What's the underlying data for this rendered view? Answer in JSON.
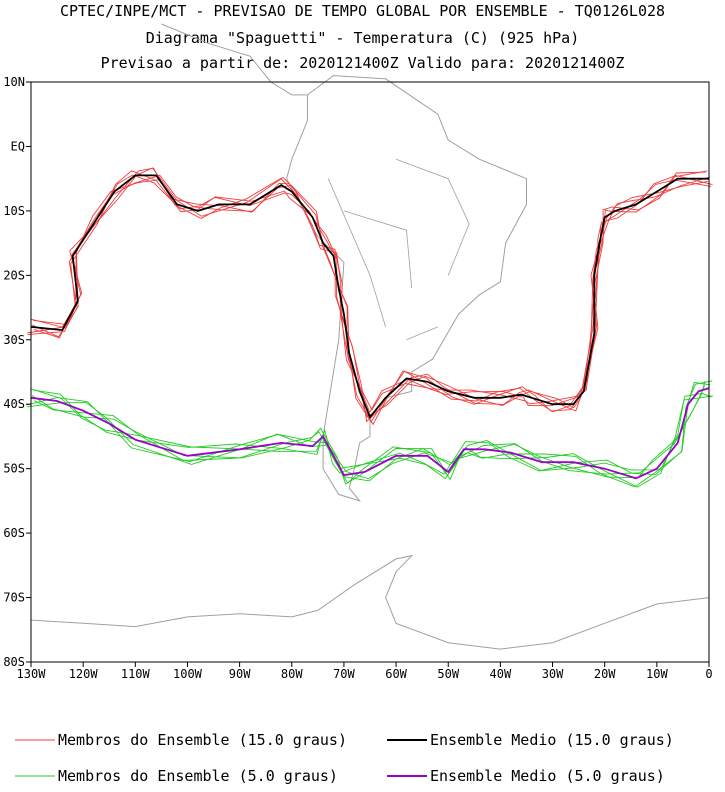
{
  "chart_data": {
    "type": "line",
    "title": "CPTEC/INPE/MCT - PREVISAO DE TEMPO GLOBAL POR ENSEMBLE - TQ0126L028",
    "subtitle": "Diagrama \"Spaguetti\" - Temperatura (C) (925 hPa)",
    "subtitle2": "Previsao a partir de: 2020121400Z  Valido para: 2020121400Z",
    "xlabel": "",
    "ylabel": "",
    "xlim": [
      -130,
      0
    ],
    "ylim": [
      -80,
      10
    ],
    "x_ticks": [
      {
        "value": -130,
        "label": "130W"
      },
      {
        "value": -120,
        "label": "120W"
      },
      {
        "value": -110,
        "label": "110W"
      },
      {
        "value": -100,
        "label": "100W"
      },
      {
        "value": -90,
        "label": "90W"
      },
      {
        "value": -80,
        "label": "80W"
      },
      {
        "value": -70,
        "label": "70W"
      },
      {
        "value": -60,
        "label": "60W"
      },
      {
        "value": -50,
        "label": "50W"
      },
      {
        "value": -40,
        "label": "40W"
      },
      {
        "value": -30,
        "label": "30W"
      },
      {
        "value": -20,
        "label": "20W"
      },
      {
        "value": -10,
        "label": "10W"
      },
      {
        "value": 0,
        "label": "0"
      }
    ],
    "y_ticks": [
      {
        "value": 10,
        "label": "10N"
      },
      {
        "value": 0,
        "label": "EQ"
      },
      {
        "value": -10,
        "label": "10S"
      },
      {
        "value": -20,
        "label": "20S"
      },
      {
        "value": -30,
        "label": "30S"
      },
      {
        "value": -40,
        "label": "40S"
      },
      {
        "value": -50,
        "label": "50S"
      },
      {
        "value": -60,
        "label": "60S"
      },
      {
        "value": -70,
        "label": "70S"
      },
      {
        "value": -80,
        "label": "80S"
      }
    ],
    "series": [
      {
        "name": "Membros do Ensemble (15.0 graus)",
        "color": "#f03c3c",
        "style": "members",
        "members": 6,
        "spread": 1.2,
        "x": [
          -130,
          -124,
          -121,
          -122,
          -118,
          -114,
          -110,
          -106,
          -102,
          -98,
          -94,
          -88,
          -82,
          -80,
          -76,
          -74,
          -72,
          -71,
          -70,
          -69,
          -67,
          -65,
          -62,
          -58,
          -54,
          -50,
          -45,
          -40,
          -36,
          -34,
          -30,
          -26,
          -24,
          -22,
          -22,
          -21,
          -20,
          -18,
          -14,
          -10,
          -6,
          0
        ],
        "y": [
          -28,
          -28.5,
          -24,
          -17,
          -12,
          -7,
          -4.5,
          -4.5,
          -9,
          -10,
          -9,
          -9,
          -6,
          -7,
          -11,
          -15,
          -17,
          -22,
          -26,
          -32,
          -38,
          -42,
          -39,
          -36,
          -36.5,
          -38,
          -39,
          -39,
          -38.5,
          -39,
          -40,
          -40,
          -38,
          -29,
          -20,
          -15,
          -11,
          -10,
          -9,
          -7,
          -5,
          -5
        ]
      },
      {
        "name": "Ensemble Medio (15.0 graus)",
        "color": "#000000",
        "style": "mean",
        "x": [
          -130,
          -124,
          -121,
          -122,
          -118,
          -114,
          -110,
          -106,
          -102,
          -98,
          -94,
          -88,
          -82,
          -80,
          -76,
          -74,
          -72,
          -71,
          -70,
          -69,
          -67,
          -65,
          -62,
          -58,
          -54,
          -50,
          -45,
          -40,
          -36,
          -34,
          -30,
          -26,
          -24,
          -22,
          -22,
          -21,
          -20,
          -18,
          -14,
          -10,
          -6,
          0
        ],
        "y": [
          -28,
          -28.5,
          -24,
          -17,
          -12,
          -7,
          -4.5,
          -4.5,
          -9,
          -10,
          -9,
          -9,
          -6,
          -7,
          -11,
          -15,
          -17,
          -22,
          -26,
          -32,
          -38,
          -42,
          -39,
          -36,
          -36.5,
          -38,
          -39,
          -39,
          -38.5,
          -39,
          -40,
          -40,
          -38,
          -29,
          -20,
          -15,
          -11,
          -10,
          -9,
          -7,
          -5,
          -5
        ]
      },
      {
        "name": "Membros do Ensemble (5.0 graus)",
        "color": "#22cc22",
        "style": "members",
        "members": 6,
        "spread": 1.4,
        "x": [
          -130,
          -125,
          -120,
          -115,
          -110,
          -100,
          -90,
          -82,
          -76,
          -74,
          -72,
          -70,
          -66,
          -60,
          -54,
          -50,
          -47,
          -43,
          -38,
          -32,
          -26,
          -20,
          -14,
          -10,
          -6,
          -4,
          -2,
          0
        ],
        "y": [
          -39,
          -39.5,
          -41,
          -43,
          -45.5,
          -48,
          -47,
          -46,
          -46.5,
          -45,
          -48,
          -51,
          -50.5,
          -48,
          -48,
          -50.5,
          -47,
          -47,
          -47.5,
          -49,
          -49,
          -50,
          -51.5,
          -50,
          -46,
          -40,
          -38,
          -37.5
        ]
      },
      {
        "name": "Ensemble Medio (5.0 graus)",
        "color": "#9b00cc",
        "style": "mean",
        "x": [
          -130,
          -125,
          -120,
          -115,
          -110,
          -100,
          -90,
          -82,
          -76,
          -74,
          -72,
          -70,
          -66,
          -60,
          -54,
          -50,
          -47,
          -43,
          -38,
          -32,
          -26,
          -20,
          -14,
          -10,
          -6,
          -4,
          -2,
          0
        ],
        "y": [
          -39,
          -39.5,
          -41,
          -43,
          -45.5,
          -48,
          -47,
          -46,
          -46.5,
          -45,
          -48,
          -51,
          -50.5,
          -48,
          -48,
          -50.5,
          -47,
          -47,
          -47.5,
          -49,
          -49,
          -50,
          -51.5,
          -50,
          -46,
          -40,
          -38,
          -37.5
        ]
      }
    ],
    "legend": [
      {
        "label": "Membros do Ensemble (15.0 graus)",
        "color": "#f03c3c"
      },
      {
        "label": "Ensemble Medio (15.0 graus)",
        "color": "#000000"
      },
      {
        "label": "Membros do Ensemble (5.0 graus)",
        "color": "#22cc22"
      },
      {
        "label": "Ensemble Medio (5.0 graus)",
        "color": "#9b00cc"
      }
    ],
    "legend_position": "bottom"
  },
  "colors": {
    "coastline": "#a0a0a0",
    "frame": "#000000"
  }
}
